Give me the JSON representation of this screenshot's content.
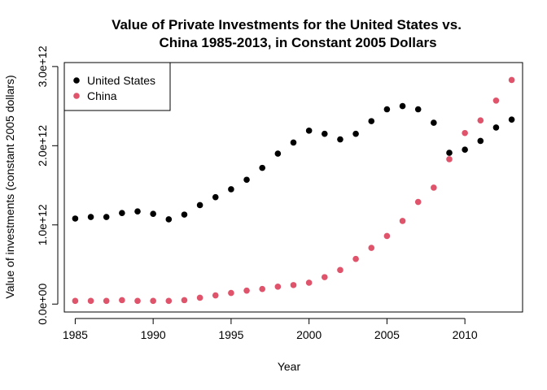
{
  "chart_data": {
    "type": "scatter",
    "title_lines": [
      "Value of Private Investments for the United States vs.",
      "China 1985-2013, in Constant 2005 Dollars"
    ],
    "xlabel": "Year",
    "ylabel": "Value of investments (constant 2005 dollars)",
    "xlim": [
      1984.3,
      2013.7
    ],
    "ylim": [
      -100000000000.0,
      3050000000000.0
    ],
    "x_ticks": [
      1985,
      1990,
      1995,
      2000,
      2005,
      2010
    ],
    "x_tick_labels": [
      "1985",
      "1990",
      "1995",
      "2000",
      "2005",
      "2010"
    ],
    "y_ticks": [
      0,
      1000000000000.0,
      2000000000000.0,
      3000000000000.0
    ],
    "y_tick_labels": [
      "0.0e+00",
      "1.0e+12",
      "2.0e+12",
      "3.0e+12"
    ],
    "legend_position": "top-left",
    "x": [
      1985,
      1986,
      1987,
      1988,
      1989,
      1990,
      1991,
      1992,
      1993,
      1994,
      1995,
      1996,
      1997,
      1998,
      1999,
      2000,
      2001,
      2002,
      2003,
      2004,
      2005,
      2006,
      2007,
      2008,
      2009,
      2010,
      2011,
      2012,
      2013
    ],
    "series": [
      {
        "name": "United States",
        "color": "#000000",
        "values": [
          1080000000000.0,
          1100000000000.0,
          1100000000000.0,
          1150000000000.0,
          1170000000000.0,
          1140000000000.0,
          1070000000000.0,
          1130000000000.0,
          1250000000000.0,
          1350000000000.0,
          1450000000000.0,
          1570000000000.0,
          1720000000000.0,
          1900000000000.0,
          2040000000000.0,
          2190000000000.0,
          2150000000000.0,
          2080000000000.0,
          2150000000000.0,
          2310000000000.0,
          2460000000000.0,
          2500000000000.0,
          2460000000000.0,
          2290000000000.0,
          1910000000000.0,
          1950000000000.0,
          2060000000000.0,
          2230000000000.0,
          2330000000000.0
        ]
      },
      {
        "name": "China",
        "color": "#DF536B",
        "values": [
          40000000000.0,
          40000000000.0,
          40000000000.0,
          50000000000.0,
          40000000000.0,
          40000000000.0,
          40000000000.0,
          50000000000.0,
          80000000000.0,
          110000000000.0,
          140000000000.0,
          170000000000.0,
          190000000000.0,
          220000000000.0,
          240000000000.0,
          270000000000.0,
          340000000000.0,
          430000000000.0,
          570000000000.0,
          710000000000.0,
          860000000000.0,
          1050000000000.0,
          1290000000000.0,
          1470000000000.0,
          1830000000000.0,
          2160000000000.0,
          2320000000000.0,
          2570000000000.0,
          2830000000000.0
        ]
      }
    ]
  }
}
